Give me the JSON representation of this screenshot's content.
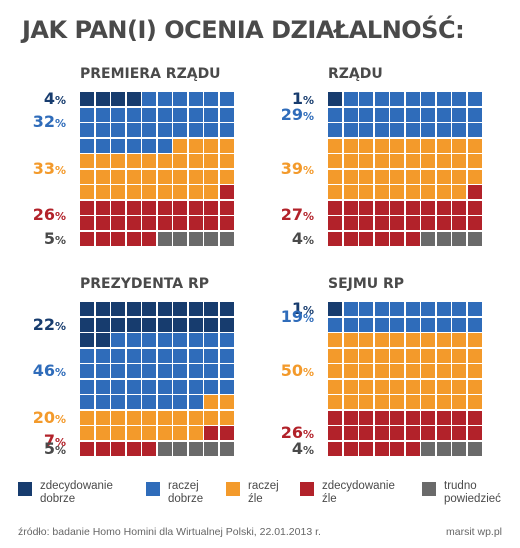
{
  "title": "JAK PAN(I) OCENIA DZIAŁALNOŚĆ:",
  "colors": {
    "zdecydowanie_dobrze": "#173c6e",
    "raczej_dobrze": "#2f6cba",
    "raczej_zle": "#f39a2b",
    "zdecydowanie_zle": "#b2222a",
    "trudno_powiedziec": "#6a6a6a"
  },
  "legend": [
    {
      "label": "zdecydowanie\ndobrze",
      "color": "#173c6e"
    },
    {
      "label": "raczej\ndobrze",
      "color": "#2f6cba"
    },
    {
      "label": "raczej\nźle",
      "color": "#f39a2b"
    },
    {
      "label": "zdecydowanie\nźle",
      "color": "#b2222a"
    },
    {
      "label": "trudno\npowiedzieć",
      "color": "#6a6a6a"
    }
  ],
  "chart_data": [
    {
      "type": "waffle",
      "title": "PREMIERA RZĄDU",
      "categories": [
        "zdecydowanie dobrze",
        "raczej dobrze",
        "raczej źle",
        "zdecydowanie źle",
        "trudno powiedzieć"
      ],
      "values": [
        4,
        32,
        33,
        26,
        5
      ],
      "labels": [
        "4",
        "32",
        "33",
        "26",
        "5"
      ]
    },
    {
      "type": "waffle",
      "title": "RZĄDU",
      "categories": [
        "zdecydowanie dobrze",
        "raczej dobrze",
        "raczej źle",
        "zdecydowanie źle",
        "trudno powiedzieć"
      ],
      "values": [
        1,
        29,
        39,
        27,
        4
      ],
      "labels": [
        "1",
        "29",
        "39",
        "27",
        "4"
      ]
    },
    {
      "type": "waffle",
      "title": "PREZYDENTA RP",
      "categories": [
        "zdecydowanie dobrze",
        "raczej dobrze",
        "raczej źle",
        "zdecydowanie źle",
        "trudno powiedzieć"
      ],
      "values": [
        22,
        46,
        20,
        7,
        5
      ],
      "labels": [
        "22",
        "46",
        "20",
        "7",
        "5"
      ]
    },
    {
      "type": "waffle",
      "title": "SEJMU RP",
      "categories": [
        "zdecydowanie dobrze",
        "raczej dobrze",
        "raczej źle",
        "zdecydowanie źle",
        "trudno powiedzieć"
      ],
      "values": [
        1,
        19,
        50,
        26,
        4
      ],
      "labels": [
        "1",
        "19",
        "50",
        "26",
        "4"
      ]
    }
  ],
  "percent_symbol": "%",
  "footer": {
    "source": "źródło: badanie Homo Homini dla Wirtualnej Polski, 22.01.2013 r.",
    "credit": "marsit wp.pl"
  }
}
